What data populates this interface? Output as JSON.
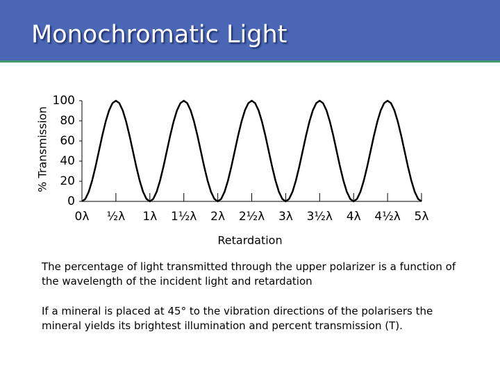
{
  "header": {
    "title": "Monochromatic Light"
  },
  "chart_data": {
    "type": "line",
    "y_label": "% Transmission",
    "x_label": "Retardation",
    "color": "#000000",
    "x": [
      0,
      0.05,
      0.1,
      0.15,
      0.2,
      0.25,
      0.3,
      0.35,
      0.4,
      0.45,
      0.5,
      0.55,
      0.6,
      0.65,
      0.7,
      0.75,
      0.8,
      0.85,
      0.9,
      0.95,
      1,
      1.05,
      1.1,
      1.15,
      1.2,
      1.25,
      1.3,
      1.35,
      1.4,
      1.45,
      1.5,
      1.55,
      1.6,
      1.65,
      1.7,
      1.75,
      1.8,
      1.85,
      1.9,
      1.95,
      2,
      2.05,
      2.1,
      2.15,
      2.2,
      2.25,
      2.3,
      2.35,
      2.4,
      2.45,
      2.5,
      2.55,
      2.6,
      2.65,
      2.7,
      2.75,
      2.8,
      2.85,
      2.9,
      2.95,
      3,
      3.05,
      3.1,
      3.15,
      3.2,
      3.25,
      3.3,
      3.35,
      3.4,
      3.45,
      3.5,
      3.55,
      3.6,
      3.65,
      3.7,
      3.75,
      3.8,
      3.85,
      3.9,
      3.95,
      4,
      4.05,
      4.1,
      4.15,
      4.2,
      4.25,
      4.3,
      4.35,
      4.4,
      4.45,
      4.5,
      4.55,
      4.6,
      4.65,
      4.7,
      4.75,
      4.8,
      4.85,
      4.9,
      4.95,
      5
    ],
    "values": [
      0,
      2.4,
      9.5,
      20.6,
      34.5,
      50,
      65.5,
      79.4,
      90.5,
      97.6,
      100,
      97.6,
      90.5,
      79.4,
      65.5,
      50,
      34.5,
      20.6,
      9.5,
      2.4,
      0,
      2.4,
      9.5,
      20.6,
      34.5,
      50,
      65.5,
      79.4,
      90.5,
      97.6,
      100,
      97.6,
      90.5,
      79.4,
      65.5,
      50,
      34.5,
      20.6,
      9.5,
      2.4,
      0,
      2.4,
      9.5,
      20.6,
      34.5,
      50,
      65.5,
      79.4,
      90.5,
      97.6,
      100,
      97.6,
      90.5,
      79.4,
      65.5,
      50,
      34.5,
      20.6,
      9.5,
      2.4,
      0,
      2.4,
      9.5,
      20.6,
      34.5,
      50,
      65.5,
      79.4,
      90.5,
      97.6,
      100,
      97.6,
      90.5,
      79.4,
      65.5,
      50,
      34.5,
      20.6,
      9.5,
      2.4,
      0,
      2.4,
      9.5,
      20.6,
      34.5,
      50,
      65.5,
      79.4,
      90.5,
      97.6,
      100,
      97.6,
      90.5,
      79.4,
      65.5,
      50,
      34.5,
      20.6,
      9.5,
      2.4,
      0
    ],
    "xlim": [
      0,
      5
    ],
    "xticks": [
      {
        "value": 0,
        "label": "0λ"
      },
      {
        "value": 0.5,
        "label": "½λ"
      },
      {
        "value": 1,
        "label": "1λ"
      },
      {
        "value": 1.5,
        "label": "1½λ"
      },
      {
        "value": 2,
        "label": "2λ"
      },
      {
        "value": 2.5,
        "label": "2½λ"
      },
      {
        "value": 3,
        "label": "3λ"
      },
      {
        "value": 3.5,
        "label": "3½λ"
      },
      {
        "value": 4,
        "label": "4λ"
      },
      {
        "value": 4.5,
        "label": "4½λ"
      },
      {
        "value": 5,
        "label": "5λ"
      }
    ],
    "ylim": [
      0,
      100
    ],
    "yticks": [
      0,
      20,
      40,
      60,
      80,
      100
    ]
  },
  "paragraphs": [
    "The percentage of light transmitted through the upper polarizer is a function of the wavelength of the incident light and retardation",
    "If a mineral is placed at 45° to the vibration directions of the polarisers the mineral yields its brightest illumination and percent transmission (T)."
  ]
}
